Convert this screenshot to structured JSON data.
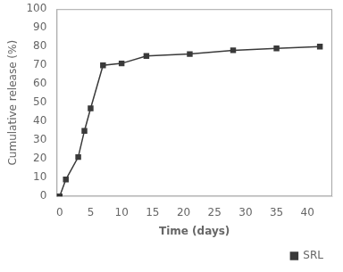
{
  "chart_data": {
    "type": "line",
    "xlabel": "Time (days)",
    "ylabel": "Cumulative release (%)",
    "x": [
      0,
      1,
      3,
      4,
      5,
      7,
      10,
      14,
      21,
      28,
      35,
      42
    ],
    "series": [
      {
        "name": "SRL",
        "color": "#3a3a3a",
        "marker": "square",
        "values": [
          0,
          9,
          21,
          35,
          47,
          70,
          71,
          75,
          76,
          78,
          79,
          80
        ]
      }
    ],
    "xlim": [
      -0.5,
      44
    ],
    "ylim": [
      0,
      100
    ],
    "xticks": [
      0,
      5,
      10,
      15,
      20,
      25,
      30,
      35,
      40
    ],
    "yticks": [
      0,
      10,
      20,
      30,
      40,
      50,
      60,
      70,
      80,
      90,
      100
    ],
    "grid": false,
    "legend": "lower right"
  }
}
